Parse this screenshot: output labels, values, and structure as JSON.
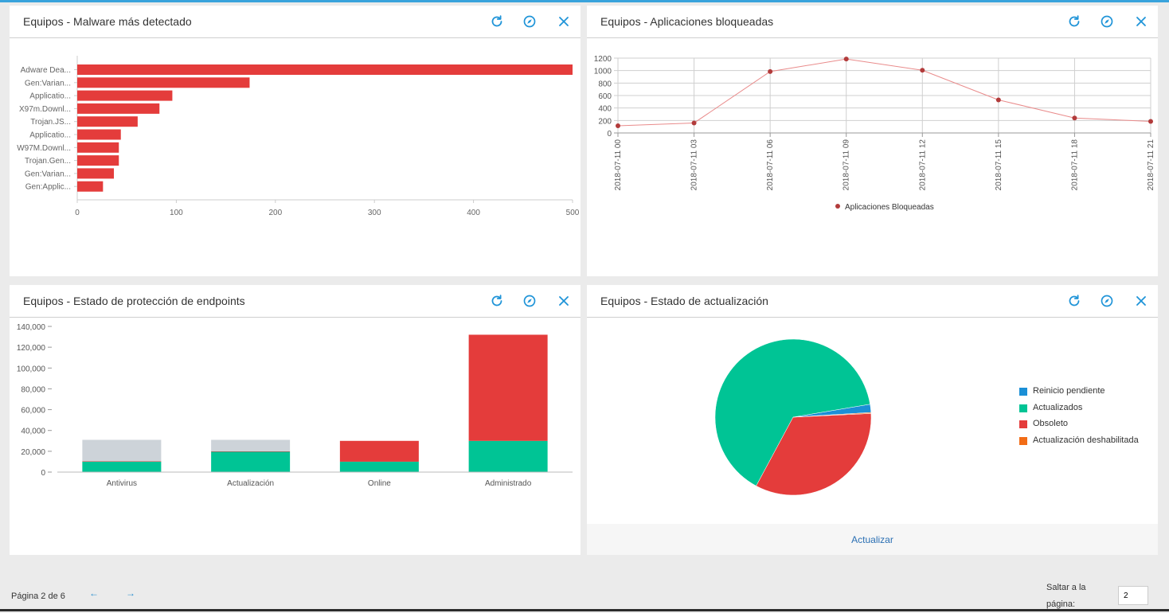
{
  "colors": {
    "accent": "#1f94d8",
    "red": "#e43c3b",
    "green": "#00c495",
    "grey": "#cdd3d9",
    "blue": "#1b8fd6",
    "orange": "#f26c16"
  },
  "panels": {
    "malware": {
      "title": "Equipos - Malware más detectado"
    },
    "blocked": {
      "title": "Equipos - Aplicaciones bloqueadas"
    },
    "protection": {
      "title": "Equipos - Estado de protección de endpoints"
    },
    "update": {
      "title": "Equipos - Estado de actualización",
      "footer_link": "Actualizar"
    }
  },
  "icons": {
    "refresh": "refresh-icon",
    "compass": "compass-icon",
    "close": "close-icon",
    "prev": "arrow-left-icon",
    "next": "arrow-right-icon"
  },
  "pager": {
    "page_text": "Página 2 de 6",
    "prev": "←",
    "next": "→",
    "jump_label": "Saltar a la página:",
    "jump_value": "2"
  },
  "chart_data": [
    {
      "type": "bar",
      "orientation": "horizontal",
      "categories": [
        "Adware Dea...",
        "Gen:Varian...",
        "Applicatio...",
        "X97m.Downl...",
        "Trojan.JS...",
        "Applicatio...",
        "W97M.Downl...",
        "Trojan.Gen...",
        "Gen:Varian...",
        "Gen:Applic..."
      ],
      "values": [
        500,
        174,
        96,
        83,
        61,
        44,
        42,
        42,
        37,
        26
      ],
      "xlim": [
        0,
        500
      ],
      "ticks": [
        "0",
        "100",
        "200",
        "300",
        "400",
        "500"
      ]
    },
    {
      "type": "line",
      "x": [
        "2018-07-11 00",
        "2018-07-11 03",
        "2018-07-11 06",
        "2018-07-11 09",
        "2018-07-11 12",
        "2018-07-11 15",
        "2018-07-11 18",
        "2018-07-11 21"
      ],
      "series": [
        {
          "name": "Aplicaciones Bloqueadas",
          "values": [
            115,
            160,
            985,
            1185,
            1005,
            530,
            240,
            185
          ]
        }
      ],
      "ylim": [
        0,
        1200
      ],
      "yticks": [
        "0",
        "200",
        "400",
        "600",
        "800",
        "1000",
        "1200"
      ],
      "grid": true,
      "legend": "bottom"
    },
    {
      "type": "bar",
      "stacked": true,
      "categories": [
        "Antivirus",
        "Actualización",
        "Online",
        "Administrado"
      ],
      "series": [
        {
          "values": [
            10000,
            19500,
            10000,
            30000
          ]
        },
        {
          "values": [
            500,
            500,
            20000,
            102000
          ]
        },
        {
          "values": [
            20500,
            11000,
            0,
            0
          ]
        }
      ],
      "ylim": [
        0,
        140000
      ],
      "yticks": [
        "0",
        "20,000",
        "40,000",
        "60,000",
        "80,000",
        "100,000",
        "120,000",
        "140,000"
      ]
    },
    {
      "type": "pie",
      "slices": [
        {
          "label": "Reinicio pendiente",
          "value": 1.7
        },
        {
          "label": "Actualizados",
          "value": 64.5
        },
        {
          "label": "Obsoleto",
          "value": 33.6
        },
        {
          "label": "Actualización deshabilitada",
          "value": 0.2
        }
      ]
    }
  ]
}
